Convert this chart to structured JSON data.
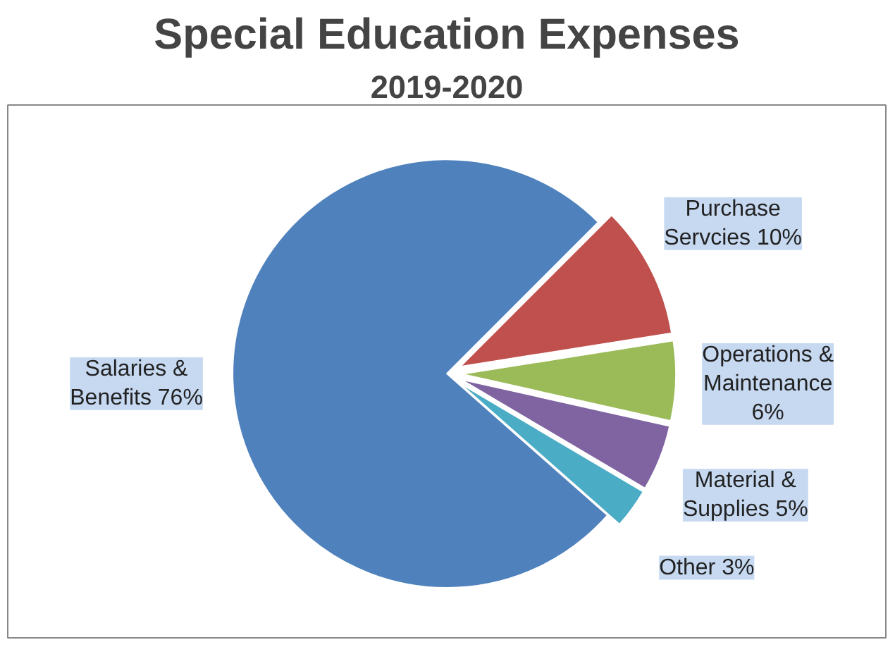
{
  "chart_data": {
    "type": "pie",
    "title": "Special Education Expenses",
    "subtitle": "2019-2020",
    "categories": [
      "Salaries & Benefits",
      "Purchase Servcies",
      "Operations & Maintenance",
      "Material & Supplies",
      "Other"
    ],
    "values": [
      76,
      10,
      6,
      5,
      3
    ],
    "value_labels": [
      "76%",
      "10%",
      "6%",
      "5%",
      "3%"
    ],
    "colors": [
      "#4f81bd",
      "#c0504d",
      "#9bbb59",
      "#8064a2",
      "#4bacc6"
    ]
  }
}
